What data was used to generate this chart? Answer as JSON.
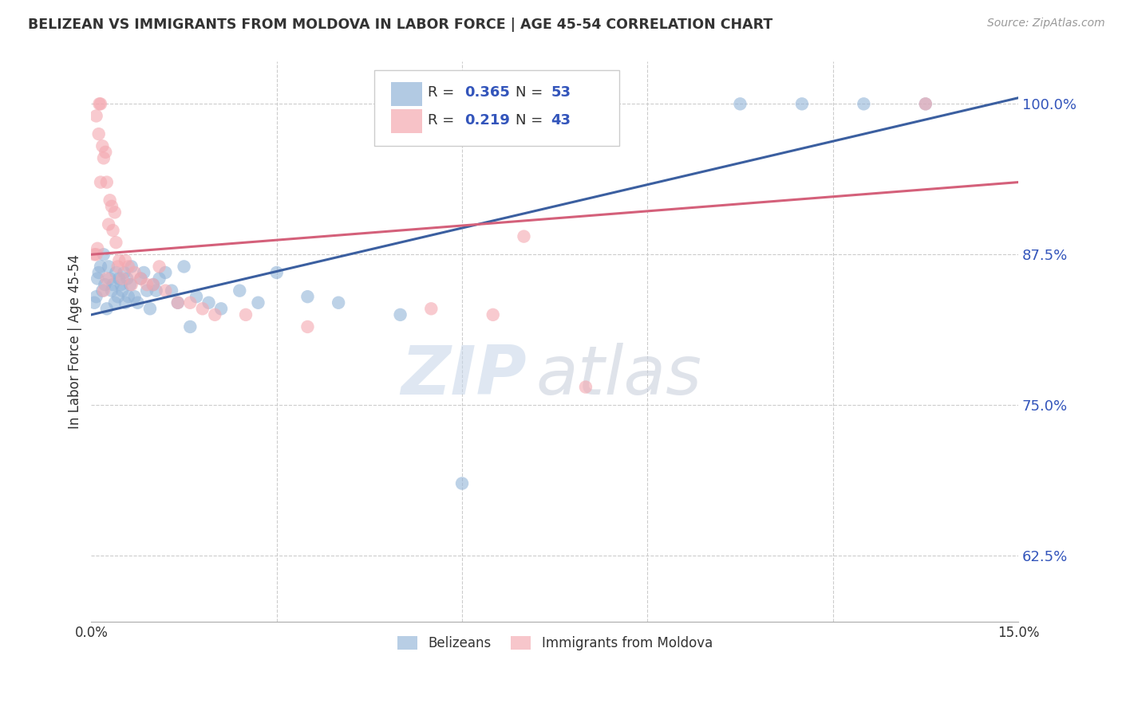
{
  "title": "BELIZEAN VS IMMIGRANTS FROM MOLDOVA IN LABOR FORCE | AGE 45-54 CORRELATION CHART",
  "source": "Source: ZipAtlas.com",
  "ylabel": "In Labor Force | Age 45-54",
  "y_ticks": [
    62.5,
    75.0,
    87.5,
    100.0
  ],
  "y_tick_labels": [
    "62.5%",
    "75.0%",
    "87.5%",
    "100.0%"
  ],
  "xlim": [
    0.0,
    15.0
  ],
  "ylim": [
    57.0,
    103.5
  ],
  "blue_R": "0.365",
  "blue_N": "53",
  "pink_R": "0.219",
  "pink_N": "43",
  "blue_color": "#92B4D8",
  "pink_color": "#F4A8B0",
  "blue_line_color": "#3B5FA0",
  "pink_line_color": "#D4607A",
  "blue_label": "Belizeans",
  "pink_label": "Immigrants from Moldova",
  "watermark_zip": "ZIP",
  "watermark_atlas": "atlas",
  "watermark_color_zip": "#C5D5E8",
  "watermark_color_atlas": "#C5CCDA",
  "legend_R_color": "#333333",
  "legend_N_color": "#3355BB",
  "blue_x": [
    0.05,
    0.08,
    0.1,
    0.12,
    0.15,
    0.18,
    0.2,
    0.22,
    0.25,
    0.28,
    0.3,
    0.33,
    0.35,
    0.38,
    0.4,
    0.43,
    0.45,
    0.48,
    0.5,
    0.53,
    0.55,
    0.58,
    0.6,
    0.63,
    0.65,
    0.7,
    0.75,
    0.8,
    0.85,
    0.9,
    0.95,
    1.0,
    1.05,
    1.1,
    1.2,
    1.3,
    1.4,
    1.5,
    1.7,
    1.9,
    2.1,
    2.4,
    2.7,
    3.0,
    3.5,
    4.0,
    5.0,
    6.0,
    1.6,
    10.5,
    11.5,
    12.5,
    13.5
  ],
  "blue_y": [
    83.5,
    84.0,
    85.5,
    86.0,
    86.5,
    84.5,
    87.5,
    85.0,
    83.0,
    86.5,
    85.5,
    84.5,
    85.0,
    83.5,
    86.0,
    84.0,
    85.5,
    85.0,
    84.5,
    86.0,
    83.5,
    85.5,
    84.0,
    85.0,
    86.5,
    84.0,
    83.5,
    85.5,
    86.0,
    84.5,
    83.0,
    85.0,
    84.5,
    85.5,
    86.0,
    84.5,
    83.5,
    86.5,
    84.0,
    83.5,
    83.0,
    84.5,
    83.5,
    86.0,
    84.0,
    83.5,
    82.5,
    68.5,
    81.5,
    100.0,
    100.0,
    100.0,
    100.0
  ],
  "pink_x": [
    0.05,
    0.08,
    0.1,
    0.13,
    0.15,
    0.18,
    0.2,
    0.23,
    0.25,
    0.28,
    0.3,
    0.33,
    0.35,
    0.38,
    0.4,
    0.43,
    0.45,
    0.5,
    0.55,
    0.6,
    0.65,
    0.7,
    0.8,
    0.9,
    1.0,
    1.1,
    1.2,
    1.4,
    1.6,
    1.8,
    2.0,
    2.5,
    3.5,
    5.5,
    6.5,
    7.0,
    8.0,
    0.15,
    0.2,
    0.25,
    0.12,
    0.08,
    13.5
  ],
  "pink_y": [
    87.5,
    87.5,
    88.0,
    100.0,
    100.0,
    96.5,
    95.5,
    96.0,
    93.5,
    90.0,
    92.0,
    91.5,
    89.5,
    91.0,
    88.5,
    86.5,
    87.0,
    85.5,
    87.0,
    86.5,
    85.0,
    86.0,
    85.5,
    85.0,
    85.0,
    86.5,
    84.5,
    83.5,
    83.5,
    83.0,
    82.5,
    82.5,
    81.5,
    83.0,
    82.5,
    89.0,
    76.5,
    93.5,
    84.5,
    85.5,
    97.5,
    99.0,
    100.0
  ],
  "blue_line_x0": 0.0,
  "blue_line_y0": 82.5,
  "blue_line_x1": 15.0,
  "blue_line_y1": 100.5,
  "pink_line_x0": 0.0,
  "pink_line_y0": 87.5,
  "pink_line_x1": 15.0,
  "pink_line_y1": 93.5
}
